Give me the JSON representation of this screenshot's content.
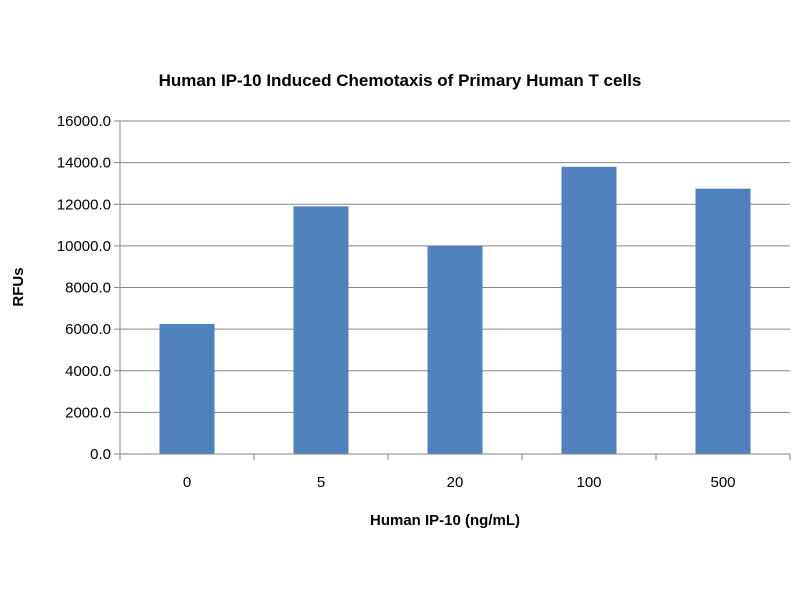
{
  "chart_data": {
    "type": "bar",
    "title": "Human IP-10 Induced Chemotaxis of Primary Human T cells",
    "xlabel": "Human IP-10 (ng/mL)",
    "ylabel": "RFUs",
    "categories": [
      "0",
      "5",
      "20",
      "100",
      "500"
    ],
    "values": [
      6250,
      11900,
      10000,
      13800,
      12750
    ],
    "ylim": [
      0,
      16000
    ],
    "yticks": [
      0,
      2000,
      4000,
      6000,
      8000,
      10000,
      12000,
      14000,
      16000
    ],
    "ytick_labels": [
      "0.0",
      "2000.0",
      "4000.0",
      "6000.0",
      "8000.0",
      "10000.0",
      "12000.0",
      "14000.0",
      "16000.0"
    ],
    "grid": true,
    "legend": "none",
    "bar_color": "#4f81bd",
    "grid_color": "#868686",
    "axis_color": "#868686"
  }
}
